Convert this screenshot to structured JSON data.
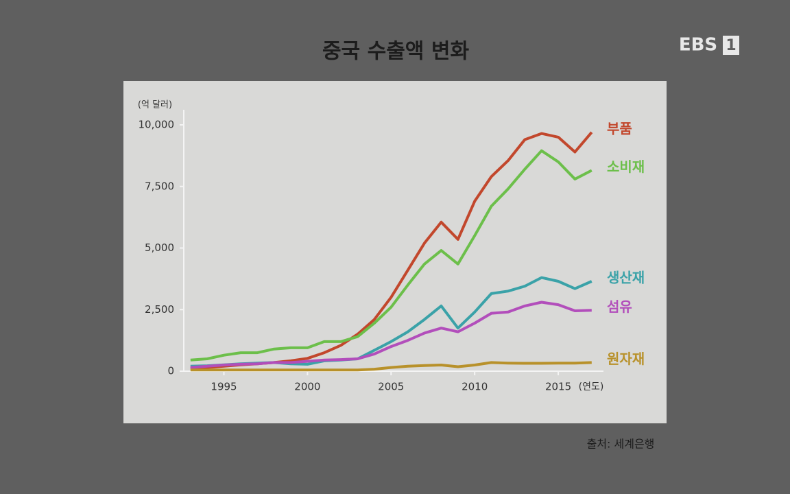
{
  "logo": "EBS",
  "channel": "1",
  "chart_data": {
    "type": "line",
    "title": "중국 수출액 변화",
    "ylabel": "(억 달러)",
    "xlabel": "(연도)",
    "source": "출처: 세계은행",
    "x": [
      1993,
      1994,
      1995,
      1996,
      1997,
      1998,
      1999,
      2000,
      2001,
      2002,
      2003,
      2004,
      2005,
      2006,
      2007,
      2008,
      2009,
      2010,
      2011,
      2012,
      2013,
      2014,
      2015,
      2016,
      2017
    ],
    "xlim": [
      1992.6,
      2017.5
    ],
    "xticks": [
      1995,
      2000,
      2005,
      2010,
      2015
    ],
    "ylim": [
      0,
      10000
    ],
    "yticks": [
      0,
      {
        "value": 2500,
        "label": "2,500"
      },
      {
        "value": 5000,
        "label": "5,000"
      },
      {
        "value": 7500,
        "label": "7,500"
      },
      {
        "value": 10000,
        "label": "10,000"
      }
    ],
    "grid": false,
    "series": [
      {
        "name": "부품",
        "color": "#c2472c",
        "values": [
          100,
          150,
          200,
          260,
          300,
          350,
          420,
          520,
          750,
          1050,
          1500,
          2100,
          3000,
          4100,
          5200,
          6050,
          5350,
          6900,
          7900,
          8550,
          9400,
          9650,
          9500,
          8900,
          9700
        ]
      },
      {
        "name": "소비재",
        "color": "#6cbf4a",
        "values": [
          450,
          500,
          650,
          750,
          750,
          900,
          950,
          950,
          1200,
          1200,
          1400,
          1950,
          2600,
          3500,
          4350,
          4900,
          4350,
          5500,
          6700,
          7400,
          8200,
          8950,
          8500,
          7800,
          8150
        ]
      },
      {
        "name": "생산재",
        "color": "#3aa2a8",
        "values": [
          200,
          220,
          260,
          300,
          330,
          350,
          300,
          280,
          420,
          450,
          500,
          850,
          1200,
          1600,
          2100,
          2650,
          1750,
          2400,
          3150,
          3250,
          3450,
          3800,
          3650,
          3350,
          3650
        ]
      },
      {
        "name": "섬유",
        "color": "#b24ebb",
        "values": [
          150,
          200,
          250,
          280,
          300,
          350,
          350,
          400,
          450,
          470,
          500,
          700,
          1000,
          1250,
          1550,
          1750,
          1600,
          1950,
          2350,
          2400,
          2650,
          2800,
          2700,
          2450,
          2470
        ]
      },
      {
        "name": "원자재",
        "color": "#b8912a",
        "values": [
          50,
          50,
          50,
          50,
          50,
          50,
          50,
          50,
          50,
          50,
          50,
          80,
          150,
          200,
          230,
          250,
          180,
          250,
          350,
          330,
          320,
          320,
          330,
          330,
          350
        ]
      }
    ]
  }
}
